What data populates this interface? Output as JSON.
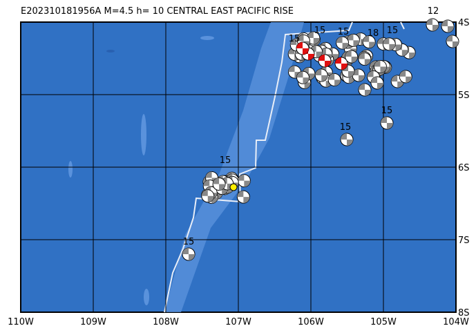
{
  "header": {
    "title": "E202310181956A M=4.5 h= 10 CENTRAL EAST PACIFIC RISE"
  },
  "map": {
    "lon_labels": [
      "110W",
      "109W",
      "108W",
      "107W",
      "106W",
      "105W",
      "104W"
    ],
    "lat_labels": [
      "4S",
      "5S",
      "6S",
      "7S",
      "8S"
    ],
    "event_labels": [
      "15",
      "15",
      "15",
      "15",
      "15",
      "15",
      "18",
      "15",
      "15",
      "12"
    ]
  }
}
